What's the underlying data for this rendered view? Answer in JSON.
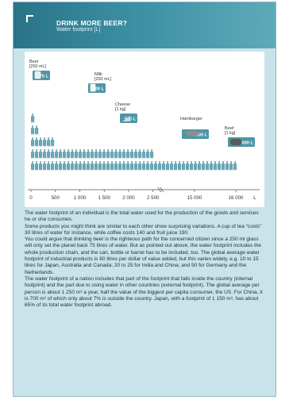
{
  "header": {
    "title": "DRINK MORE BEER?",
    "subtitle": "Water footprint [L]"
  },
  "chart_data": {
    "type": "bar",
    "orientation": "horizontal",
    "unit": "L",
    "x_ticks": [
      "0",
      "500",
      "1 000",
      "1 500",
      "2 000",
      "2 500",
      "15 000",
      "16 000",
      "L"
    ],
    "items": [
      {
        "name": "Beer (250 mL)",
        "value": 75,
        "value_label": "75 L",
        "icon": "beer-mug-icon"
      },
      {
        "name": "Milk (200 mL)",
        "value": 200,
        "value_label": "200 L",
        "icon": "milk-carton-icon"
      },
      {
        "name": "Cheese (1 kg)",
        "value": 500,
        "value_label": "500 L",
        "icon": "cheese-wedge-icon"
      },
      {
        "name": "Hamburger",
        "value": 2500,
        "value_label": "2 500 L",
        "icon": "hamburger-icon"
      },
      {
        "name": "Beef (1 kg)",
        "value": 16000,
        "value_label": "16 000 L",
        "icon": "beef-steak-icon"
      }
    ],
    "colors": {
      "bottle": "#6aa6b4",
      "label_box": "#4d96a7",
      "axis": "#555555"
    }
  },
  "text": [
    "The water footprint of an individual is the total water used for the production of the goods and services he or she consumes.",
    "Some products you might think are similar to each other show surprising variations. A cup of tea “costs” 30 litres of water for instance, while coffee costs 140 and fruit juice 190.",
    "You could argue that drinking beer is the righteous path for the concerned citizen since a 250 ml glass will only set the planet back 75 litres of water. But as pointed out above, the water footprint includes the whole production chain, and the can, bottle or barrel has to be included, too. The global average water footprint of industrial products is 80 litres per dollar of value added, but this varies widely, e.g. 10 to 15 litres for Japan, Australia and Canada; 20 to 25 for India and China; and 50 for Germany and the Netherlands.",
    "The water footprint of a nation includes that part of the footprint that falls inside the country (internal footprint) and the part due to using water in other countries (external footprint). The global average per person is about 1 250 m³ a year, half the value of the biggest per capita consumer, the US. For China, it is 700 m³ of which only about 7% is outside the country. Japan, with a footprint of 1 150 m³, has about 65% of its total water footprint abroad."
  ]
}
